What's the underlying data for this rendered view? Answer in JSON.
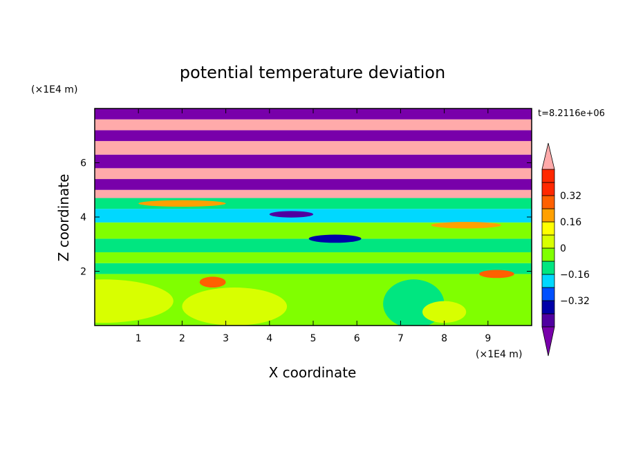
{
  "chart_data": {
    "type": "heatmap",
    "title": "potential temperature deviation",
    "xlabel": "X coordinate",
    "ylabel": "Z coordinate",
    "x_unit": "(×1E4 m)",
    "y_unit": "(×1E4 m)",
    "time_label": "t=8.2116e+06",
    "xlim": [
      0,
      10
    ],
    "ylim": [
      0,
      8
    ],
    "x_ticks": [
      1,
      2,
      3,
      4,
      5,
      6,
      7,
      8,
      9
    ],
    "x_tick_labels": [
      "1",
      "2",
      "3",
      "4",
      "5",
      "6",
      "7",
      "8",
      "9"
    ],
    "y_ticks": [
      2,
      4,
      6
    ],
    "y_tick_labels": [
      "2",
      "4",
      "6"
    ],
    "colorbar": {
      "levels": [
        -0.48,
        -0.4,
        -0.32,
        -0.24,
        -0.16,
        -0.08,
        0,
        0.08,
        0.16,
        0.24,
        0.32,
        0.4,
        0.48
      ],
      "tick_values": [
        0.32,
        0.16,
        0,
        -0.16,
        -0.32
      ],
      "tick_labels": [
        "0.32",
        "0.16",
        "0",
        "−0.16",
        "−0.32"
      ],
      "colors": [
        "#7800aa",
        "#5000a0",
        "#0000a8",
        "#0050ff",
        "#00d8ff",
        "#00e680",
        "#80ff00",
        "#d8ff00",
        "#ffff00",
        "#ffa000",
        "#ff6000",
        "#ff2800",
        "#ffaaaa"
      ],
      "extend": "both"
    },
    "bands": [
      {
        "z0": 0.0,
        "z1": 1.9,
        "level": 0.04
      },
      {
        "z0": 1.9,
        "z1": 2.3,
        "level": -0.04
      },
      {
        "z0": 2.3,
        "z1": 2.7,
        "level": 0.04
      },
      {
        "z0": 2.7,
        "z1": 3.2,
        "level": -0.04
      },
      {
        "z0": 3.2,
        "z1": 3.8,
        "level": 0.04
      },
      {
        "z0": 3.8,
        "z1": 4.3,
        "level": -0.12
      },
      {
        "z0": 4.3,
        "z1": 4.7,
        "level": -0.04
      },
      {
        "z0": 4.7,
        "z1": 5.0,
        "level": 0.6
      },
      {
        "z0": 5.0,
        "z1": 5.4,
        "level": -0.6
      },
      {
        "z0": 5.4,
        "z1": 5.8,
        "level": 0.6
      },
      {
        "z0": 5.8,
        "z1": 6.3,
        "level": -0.6
      },
      {
        "z0": 6.3,
        "z1": 6.8,
        "level": 0.6
      },
      {
        "z0": 6.8,
        "z1": 7.2,
        "level": -0.6
      },
      {
        "z0": 7.2,
        "z1": 7.6,
        "level": 0.6
      },
      {
        "z0": 7.6,
        "z1": 8.0,
        "level": -0.6
      }
    ],
    "regions": [
      {
        "x": 0.2,
        "z": 0.9,
        "rx": 1.6,
        "rz": 0.8,
        "level": 0.12
      },
      {
        "x": 3.2,
        "z": 0.7,
        "rx": 1.2,
        "rz": 0.7,
        "level": 0.12
      },
      {
        "x": 7.3,
        "z": 0.8,
        "rx": 0.7,
        "rz": 0.9,
        "level": -0.04
      },
      {
        "x": 8.0,
        "z": 0.5,
        "rx": 0.5,
        "rz": 0.4,
        "level": 0.12
      },
      {
        "x": 2.7,
        "z": 1.6,
        "rx": 0.3,
        "rz": 0.2,
        "level": 0.32
      },
      {
        "x": 9.2,
        "z": 1.9,
        "rx": 0.4,
        "rz": 0.15,
        "level": 0.32
      },
      {
        "x": 5.5,
        "z": 3.2,
        "rx": 0.6,
        "rz": 0.15,
        "level": -0.28
      },
      {
        "x": 4.5,
        "z": 4.1,
        "rx": 0.5,
        "rz": 0.12,
        "level": -0.4
      },
      {
        "x": 8.5,
        "z": 3.7,
        "rx": 0.8,
        "rz": 0.12,
        "level": 0.28
      },
      {
        "x": 2.0,
        "z": 4.5,
        "rx": 1.0,
        "rz": 0.12,
        "level": 0.3
      }
    ]
  }
}
